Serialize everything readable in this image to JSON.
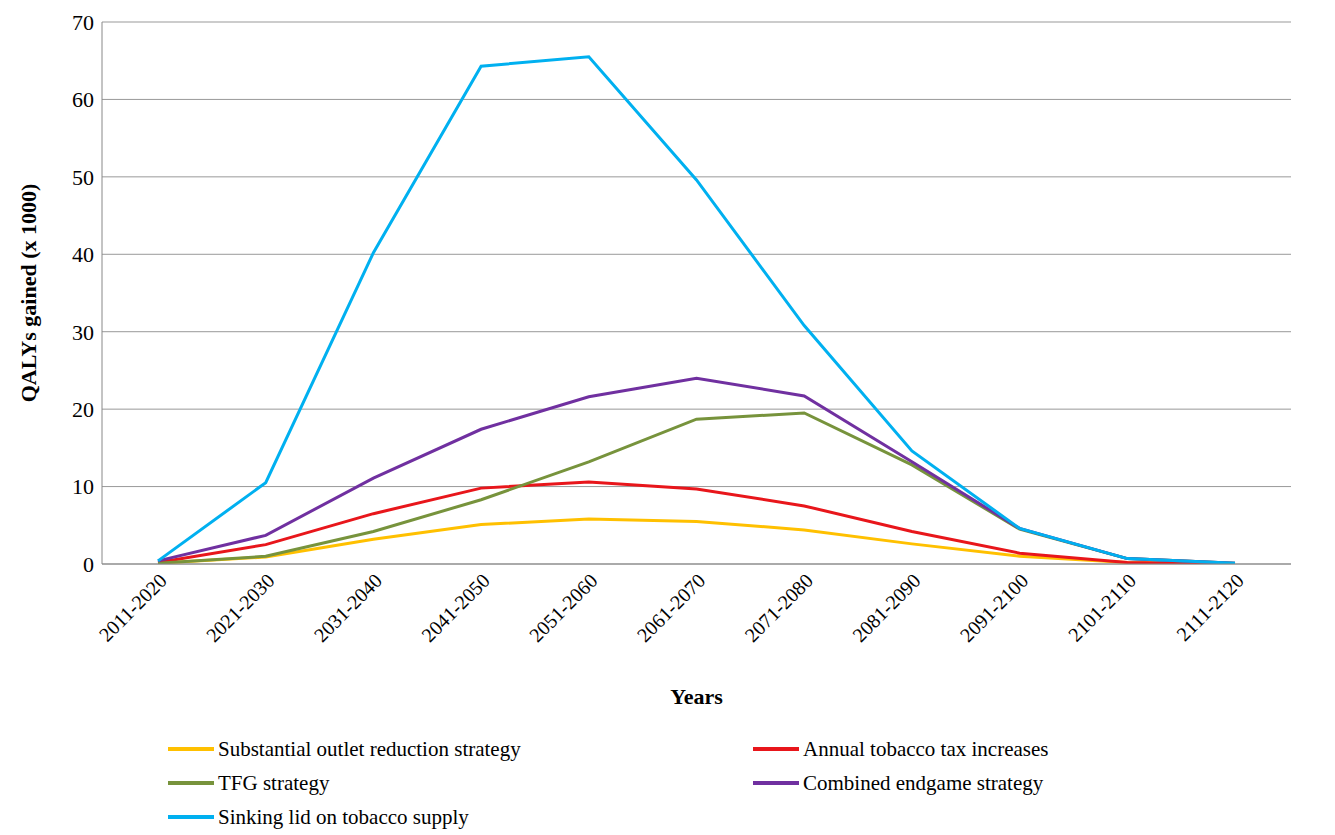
{
  "chart_data": {
    "type": "line",
    "x_label": "Years",
    "y_label": "QALYs gained (x 1000)",
    "categories": [
      "2011-2020",
      "2021-2030",
      "2031-2040",
      "2041-2050",
      "2051-2060",
      "2061-2070",
      "2071-2080",
      "2081-2090",
      "2091-2100",
      "2101-2110",
      "2111-2120"
    ],
    "series": [
      {
        "name": "Substantial outlet reduction strategy",
        "color": "#FFC000",
        "values": [
          0.1,
          0.9,
          3.2,
          5.1,
          5.8,
          5.5,
          4.4,
          2.6,
          1.0,
          0.2,
          0.0
        ]
      },
      {
        "name": "Annual tobacco tax increases",
        "color": "#E8161B",
        "values": [
          0.2,
          2.5,
          6.5,
          9.8,
          10.6,
          9.7,
          7.5,
          4.2,
          1.4,
          0.2,
          0.0
        ]
      },
      {
        "name": "TFG strategy",
        "color": "#77933C",
        "values": [
          0.1,
          1.0,
          4.2,
          8.3,
          13.2,
          18.7,
          19.5,
          12.8,
          4.5,
          0.7,
          0.1
        ]
      },
      {
        "name": "Combined endgame strategy",
        "color": "#7030A0",
        "values": [
          0.4,
          3.7,
          11.1,
          17.4,
          21.6,
          24.0,
          21.7,
          13.2,
          4.6,
          0.7,
          0.1
        ]
      },
      {
        "name": "Sinking lid on tobacco supply",
        "color": "#00B0F0",
        "values": [
          0.4,
          10.5,
          40.2,
          64.3,
          65.5,
          49.6,
          30.8,
          14.6,
          4.6,
          0.7,
          0.1
        ]
      }
    ],
    "ylim": [
      0,
      70
    ],
    "yticks": [
      0,
      10,
      20,
      30,
      40,
      50,
      60,
      70
    ],
    "grid": true,
    "legend": "bottom"
  }
}
